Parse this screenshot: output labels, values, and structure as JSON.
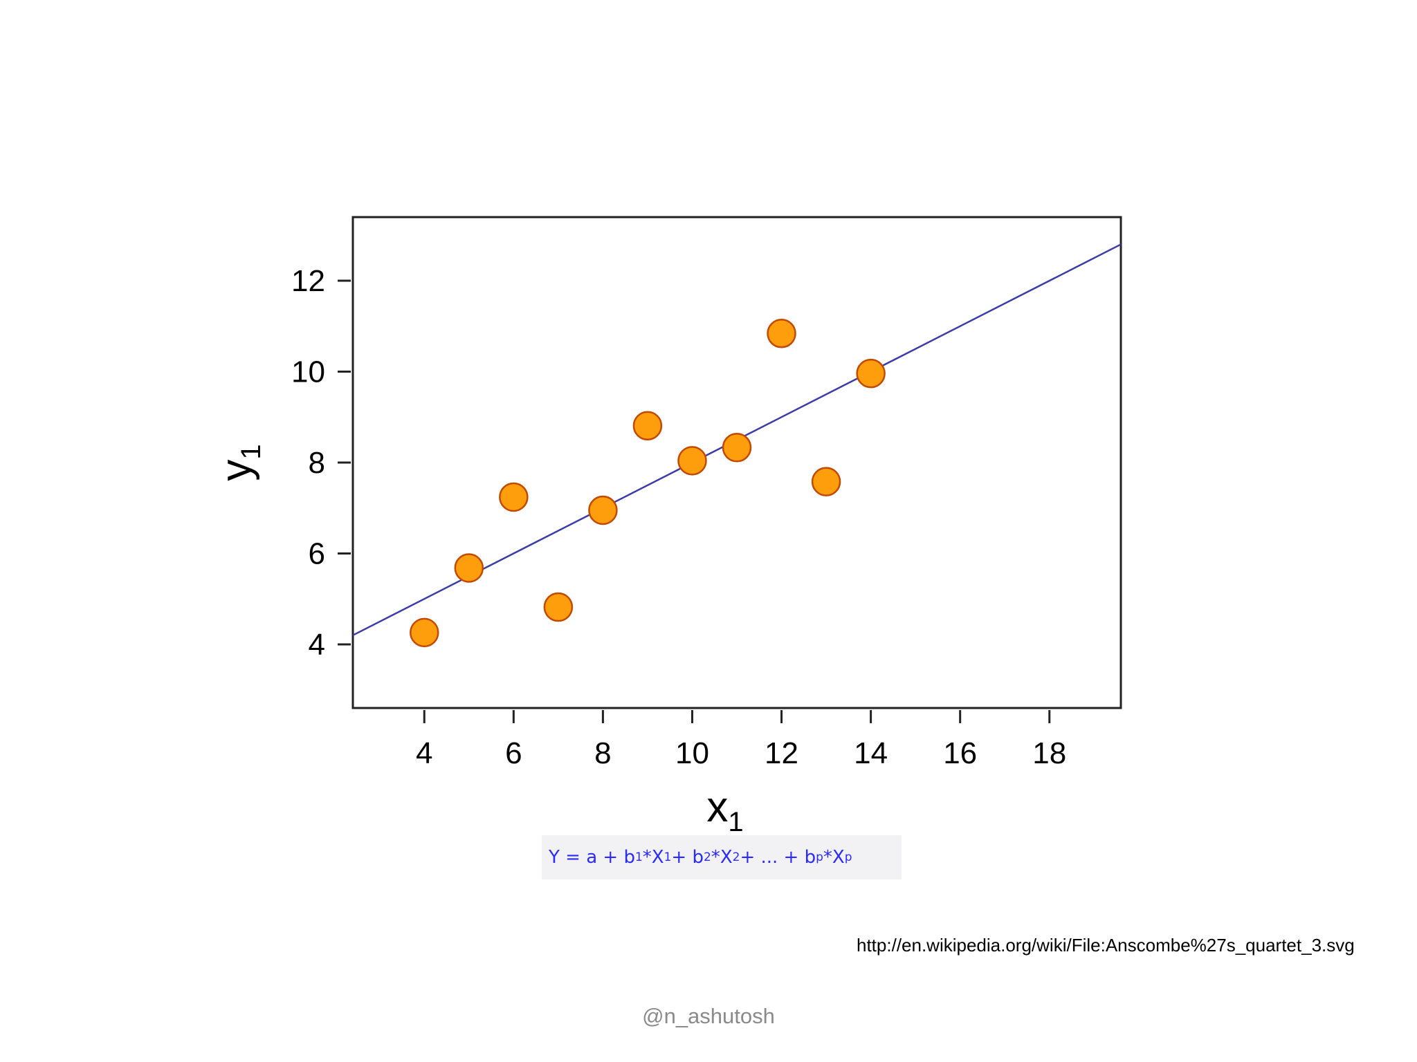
{
  "chart_data": {
    "type": "scatter",
    "xlabel": "x",
    "xlabel_sub": "1",
    "ylabel": "y",
    "ylabel_sub": "1",
    "xlim": [
      2.4,
      19.6
    ],
    "ylim": [
      2.6,
      13.4
    ],
    "xticks": [
      4,
      6,
      8,
      10,
      12,
      14,
      16,
      18
    ],
    "yticks": [
      4,
      6,
      8,
      10,
      12
    ],
    "grid": false,
    "points": [
      {
        "x": 4,
        "y": 4.26
      },
      {
        "x": 5,
        "y": 5.68
      },
      {
        "x": 6,
        "y": 7.24
      },
      {
        "x": 7,
        "y": 4.82
      },
      {
        "x": 8,
        "y": 6.95
      },
      {
        "x": 9,
        "y": 8.81
      },
      {
        "x": 10,
        "y": 8.04
      },
      {
        "x": 11,
        "y": 8.33
      },
      {
        "x": 12,
        "y": 10.84
      },
      {
        "x": 13,
        "y": 7.58
      },
      {
        "x": 14,
        "y": 9.96
      }
    ],
    "fit_line": {
      "intercept": 3.0,
      "slope": 0.5
    },
    "colors": {
      "point_fill": "#ff9e0d",
      "point_stroke": "#c24a00",
      "line": "#3c3ca8",
      "axes": "#222222"
    }
  },
  "formula": {
    "lead": "Y = a + b",
    "s1": "1",
    "t1": "*X",
    "s2": "1",
    "t2": " + b",
    "s3": "2",
    "t3": "*X",
    "s4": "2",
    "t4": " + ... + b",
    "s5": "p",
    "t5": "*X",
    "s6": "p"
  },
  "source_url": "http://en.wikipedia.org/wiki/File:Anscombe%27s_quartet_3.svg",
  "watermark": "@n_ashutosh"
}
